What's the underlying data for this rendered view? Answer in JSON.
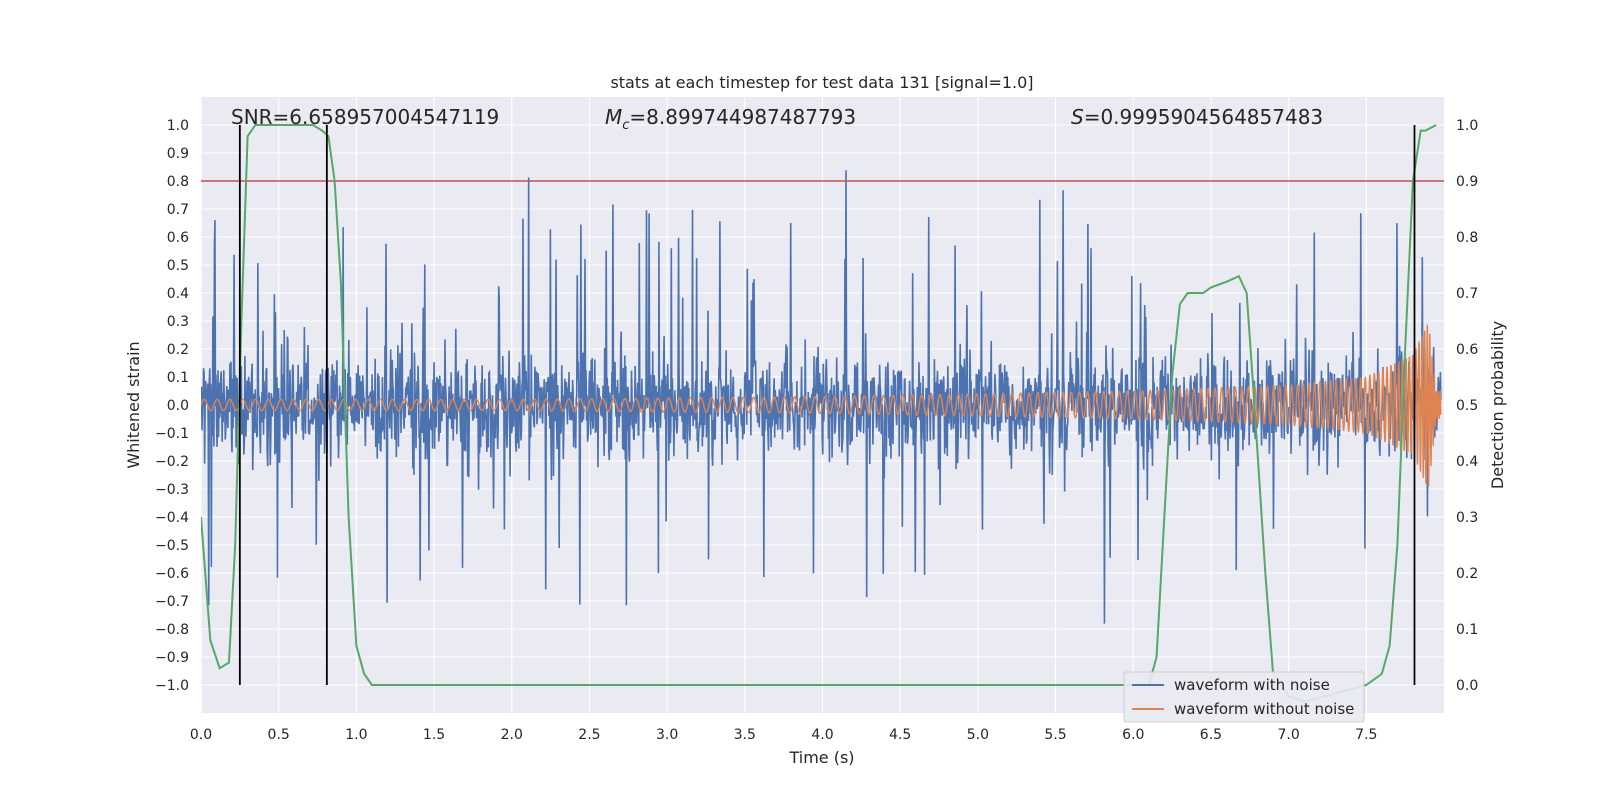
{
  "chart_data": {
    "type": "line",
    "title": "stats at each timestep for test data 131 [signal=1.0]",
    "xlabel": "Time (s)",
    "ylabel": "Whitened strain",
    "y2label": "Detection probability",
    "xlim": [
      0.0,
      8.0
    ],
    "ylim": [
      -1.1,
      1.1
    ],
    "y2lim": [
      -0.05,
      1.05
    ],
    "xticks": [
      0.0,
      0.5,
      1.0,
      1.5,
      2.0,
      2.5,
      3.0,
      3.5,
      4.0,
      4.5,
      5.0,
      5.5,
      6.0,
      6.5,
      7.0,
      7.5
    ],
    "xtick_labels": [
      "0.0",
      "0.5",
      "1.0",
      "1.5",
      "2.0",
      "2.5",
      "3.0",
      "3.5",
      "4.0",
      "4.5",
      "5.0",
      "5.5",
      "6.0",
      "6.5",
      "7.0",
      "7.5"
    ],
    "yticks": [
      1.0,
      0.9,
      0.8,
      0.7,
      0.6,
      0.5,
      0.4,
      0.3,
      0.2,
      0.1,
      0.0,
      -0.1,
      -0.2,
      -0.3,
      -0.4,
      -0.5,
      -0.6,
      -0.7,
      -0.8,
      -0.9,
      -1.0
    ],
    "ytick_labels": [
      "1.0",
      "0.9",
      "0.8",
      "0.7",
      "0.6",
      "0.5",
      "0.4",
      "0.3",
      "0.2",
      "0.1",
      "0.0",
      "−0.1",
      "−0.2",
      "−0.3",
      "−0.4",
      "−0.5",
      "−0.6",
      "−0.7",
      "−0.8",
      "−0.9",
      "−1.0"
    ],
    "y2ticks": [
      1.0,
      0.9,
      0.8,
      0.7,
      0.6,
      0.5,
      0.4,
      0.3,
      0.2,
      0.1,
      0.0
    ],
    "y2tick_labels": [
      "1.0",
      "0.9",
      "0.8",
      "0.7",
      "0.6",
      "0.5",
      "0.4",
      "0.3",
      "0.2",
      "0.1",
      "0.0"
    ],
    "annotations": {
      "snr": "SNR=6.658957004547119",
      "mc_symbol": "M",
      "mc_sub": "c",
      "mc_value": "=8.899744987487793",
      "s_symbol": "S",
      "s_value": "=0.9995904564857483"
    },
    "threshold_line": {
      "value": 0.9,
      "axis": "y2",
      "color": "#c44e52"
    },
    "detection_markers_x": [
      0.25,
      0.81,
      7.81
    ],
    "series": [
      {
        "name": "waveform with noise",
        "color": "#4c72b0",
        "description": "noisy whitened strain, dense trace",
        "envelope_upper": [
          0.62,
          0.55,
          0.6,
          0.45,
          0.42,
          0.55,
          0.5
        ],
        "envelope_lower": [
          -0.42,
          -0.45,
          -0.5,
          -0.45,
          -0.45,
          -0.45,
          -0.45
        ]
      },
      {
        "name": "waveform without noise",
        "color": "#dd8452",
        "description": "chirp signal",
        "amplitude_points": [
          [
            0.0,
            0.02
          ],
          [
            2.0,
            0.02
          ],
          [
            4.0,
            0.03
          ],
          [
            6.0,
            0.05
          ],
          [
            7.0,
            0.07
          ],
          [
            7.5,
            0.1
          ],
          [
            7.8,
            0.18
          ],
          [
            7.9,
            0.3
          ],
          [
            7.95,
            0.05
          ]
        ]
      },
      {
        "name": "detection probability",
        "color": "#55a868",
        "x": [
          0.0,
          0.06,
          0.12,
          0.18,
          0.22,
          0.26,
          0.3,
          0.35,
          0.45,
          0.55,
          0.65,
          0.72,
          0.78,
          0.82,
          0.86,
          0.9,
          0.95,
          1.0,
          1.05,
          1.1,
          1.2,
          5.8,
          6.0,
          6.1,
          6.15,
          6.2,
          6.25,
          6.3,
          6.35,
          6.4,
          6.45,
          6.5,
          6.6,
          6.68,
          6.73,
          6.78,
          6.85,
          6.9,
          6.95,
          7.0,
          7.1,
          7.5,
          7.6,
          7.65,
          7.7,
          7.75,
          7.8,
          7.85,
          7.88,
          7.95
        ],
        "y": [
          0.3,
          0.08,
          0.03,
          0.04,
          0.25,
          0.65,
          0.98,
          1.0,
          1.0,
          1.0,
          1.0,
          1.0,
          0.99,
          0.98,
          0.9,
          0.72,
          0.3,
          0.07,
          0.02,
          0.0,
          0.0,
          0.0,
          0.0,
          0.0,
          0.05,
          0.3,
          0.55,
          0.68,
          0.7,
          0.7,
          0.7,
          0.71,
          0.72,
          0.73,
          0.7,
          0.5,
          0.2,
          0.02,
          0.0,
          -0.02,
          -0.03,
          0.0,
          0.02,
          0.07,
          0.25,
          0.6,
          0.9,
          0.99,
          0.99,
          1.0
        ]
      }
    ],
    "legend": {
      "placement": "lower-right",
      "entries": [
        {
          "label": "waveform with noise",
          "color": "#4c72b0"
        },
        {
          "label": "waveform without noise",
          "color": "#dd8452"
        }
      ]
    }
  }
}
